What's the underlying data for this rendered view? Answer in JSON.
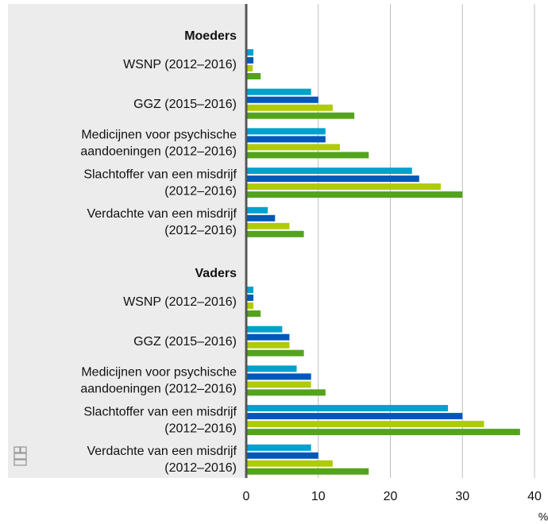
{
  "chart_data": {
    "type": "bar",
    "orientation": "horizontal",
    "colors": [
      "#00a1cd",
      "#0058b8",
      "#afcb05",
      "#53a31d"
    ],
    "xlim": [
      0,
      40
    ],
    "xticks": [
      0,
      10,
      20,
      30,
      40
    ],
    "xlabel": "%",
    "grid": true,
    "groups": [
      {
        "name": "Moeders",
        "categories": [
          [
            "WSNP (2012–2016)"
          ],
          [
            "GGZ (2015–2016)"
          ],
          [
            "Medicijnen voor psychische",
            "aandoeningen (2012–2016)"
          ],
          [
            "Slachtoffer van een misdrijf",
            "(2012–2016)"
          ],
          [
            "Verdachte van een misdrijf",
            "(2012–2016)"
          ]
        ],
        "series": [
          {
            "values": [
              1,
              9,
              11,
              23,
              3
            ]
          },
          {
            "values": [
              1,
              10,
              11,
              24,
              4
            ]
          },
          {
            "values": [
              0.9,
              12,
              13,
              27,
              6
            ]
          },
          {
            "values": [
              2,
              15,
              17,
              30,
              8
            ]
          }
        ]
      },
      {
        "name": "Vaders",
        "categories": [
          [
            "WSNP (2012–2016)"
          ],
          [
            "GGZ (2015–2016)"
          ],
          [
            "Medicijnen voor psychische",
            "aandoeningen (2012–2016)"
          ],
          [
            "Slachtoffer van een misdrijf",
            "(2012–2016)"
          ],
          [
            "Verdachte van een misdrijf",
            "(2012–2016)"
          ]
        ],
        "series": [
          {
            "values": [
              1,
              5,
              7,
              28,
              9
            ]
          },
          {
            "values": [
              1,
              6,
              9,
              30,
              10
            ]
          },
          {
            "values": [
              1,
              6,
              9,
              33,
              12
            ]
          },
          {
            "values": [
              2,
              8,
              11,
              38,
              17
            ]
          }
        ]
      }
    ]
  }
}
